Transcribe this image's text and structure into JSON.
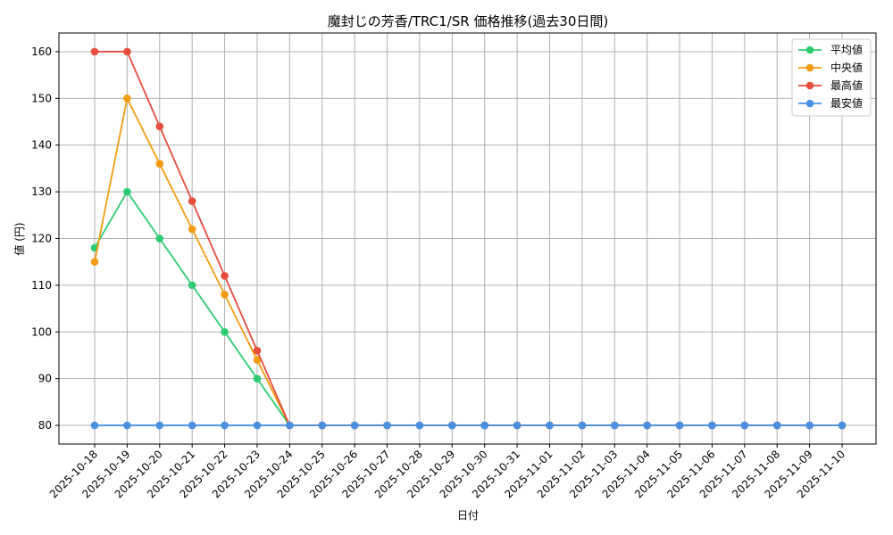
{
  "chart_data": {
    "type": "line",
    "title": "魔封じの芳香/TRC1/SR 価格推移(過去30日間)",
    "xlabel": "日付",
    "ylabel": "値 (円)",
    "x": [
      "2025-10-18",
      "2025-10-19",
      "2025-10-20",
      "2025-10-21",
      "2025-10-22",
      "2025-10-23",
      "2025-10-24",
      "2025-10-25",
      "2025-10-26",
      "2025-10-27",
      "2025-10-28",
      "2025-10-29",
      "2025-10-30",
      "2025-10-31",
      "2025-11-01",
      "2025-11-02",
      "2025-11-03",
      "2025-11-04",
      "2025-11-05",
      "2025-11-06",
      "2025-11-07",
      "2025-11-08",
      "2025-11-09",
      "2025-11-10"
    ],
    "ylim": [
      76,
      164
    ],
    "yticks": [
      80,
      90,
      100,
      110,
      120,
      130,
      140,
      150,
      160
    ],
    "grid": true,
    "legend_position": "top-right",
    "series": [
      {
        "name": "平均値",
        "color": "#2ecc71",
        "values": [
          118,
          130,
          120,
          110,
          100,
          90,
          80,
          80,
          80,
          80,
          80,
          80,
          80,
          80,
          80,
          80,
          80,
          80,
          80,
          80,
          80,
          80,
          80,
          80
        ]
      },
      {
        "name": "中央値",
        "color": "#f39c12",
        "values": [
          115,
          150,
          136,
          122,
          108,
          94,
          80,
          80,
          80,
          80,
          80,
          80,
          80,
          80,
          80,
          80,
          80,
          80,
          80,
          80,
          80,
          80,
          80,
          80
        ]
      },
      {
        "name": "最高値",
        "color": "#e74c3c",
        "values": [
          160,
          160,
          144,
          128,
          112,
          96,
          80,
          80,
          80,
          80,
          80,
          80,
          80,
          80,
          80,
          80,
          80,
          80,
          80,
          80,
          80,
          80,
          80,
          80
        ]
      },
      {
        "name": "最安値",
        "color": "#4a90e2",
        "values": [
          80,
          80,
          80,
          80,
          80,
          80,
          80,
          80,
          80,
          80,
          80,
          80,
          80,
          80,
          80,
          80,
          80,
          80,
          80,
          80,
          80,
          80,
          80,
          80
        ]
      }
    ]
  }
}
